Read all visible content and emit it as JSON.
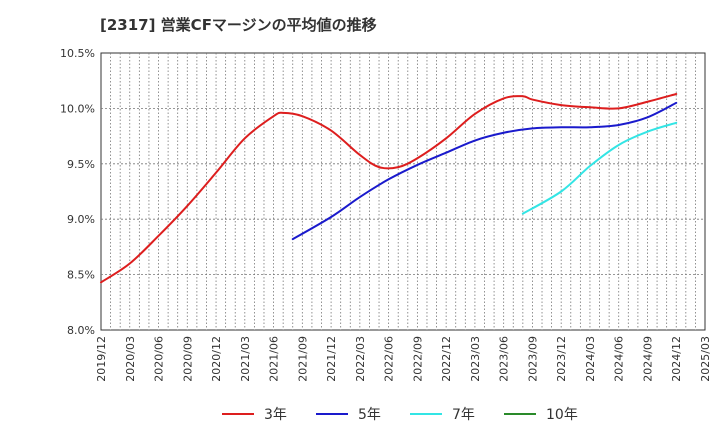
{
  "chart_data": {
    "type": "line",
    "title": "[2317]  営業CFマージンの平均値の推移",
    "xlabel": "",
    "ylabel": "",
    "ylim": [
      8.0,
      10.5
    ],
    "yticks": [
      "8.0%",
      "8.5%",
      "9.0%",
      "9.5%",
      "10.0%",
      "10.5%"
    ],
    "xlim": [
      "2019/12",
      "2025/03"
    ],
    "xticks": [
      "2019/12",
      "2020/03",
      "2020/06",
      "2020/09",
      "2020/12",
      "2021/03",
      "2021/06",
      "2021/09",
      "2021/12",
      "2022/03",
      "2022/06",
      "2022/09",
      "2022/12",
      "2023/03",
      "2023/06",
      "2023/09",
      "2023/12",
      "2024/03",
      "2024/06",
      "2024/09",
      "2024/12",
      "2025/03"
    ],
    "grid": true,
    "legend_position": "bottom",
    "series": [
      {
        "name": "3年",
        "color": "#dd1e1e",
        "points": [
          [
            "2019/12",
            8.43
          ],
          [
            "2020/03",
            8.6
          ],
          [
            "2020/06",
            8.85
          ],
          [
            "2020/09",
            9.12
          ],
          [
            "2020/12",
            9.42
          ],
          [
            "2021/03",
            9.73
          ],
          [
            "2021/06",
            9.93
          ],
          [
            "2021/07",
            9.96
          ],
          [
            "2021/09",
            9.93
          ],
          [
            "2021/12",
            9.8
          ],
          [
            "2022/03",
            9.58
          ],
          [
            "2022/05",
            9.47
          ],
          [
            "2022/07",
            9.47
          ],
          [
            "2022/09",
            9.55
          ],
          [
            "2022/12",
            9.73
          ],
          [
            "2023/03",
            9.95
          ],
          [
            "2023/06",
            10.09
          ],
          [
            "2023/08",
            10.11
          ],
          [
            "2023/09",
            10.08
          ],
          [
            "2023/12",
            10.03
          ],
          [
            "2024/03",
            10.01
          ],
          [
            "2024/06",
            10.0
          ],
          [
            "2024/09",
            10.06
          ],
          [
            "2024/12",
            10.13
          ]
        ]
      },
      {
        "name": "5年",
        "color": "#1a1acc",
        "points": [
          [
            "2021/08",
            8.82
          ],
          [
            "2021/12",
            9.02
          ],
          [
            "2022/03",
            9.2
          ],
          [
            "2022/06",
            9.36
          ],
          [
            "2022/09",
            9.49
          ],
          [
            "2022/12",
            9.6
          ],
          [
            "2023/03",
            9.71
          ],
          [
            "2023/06",
            9.78
          ],
          [
            "2023/09",
            9.82
          ],
          [
            "2023/12",
            9.83
          ],
          [
            "2024/03",
            9.83
          ],
          [
            "2024/06",
            9.85
          ],
          [
            "2024/09",
            9.92
          ],
          [
            "2024/12",
            10.05
          ]
        ]
      },
      {
        "name": "7年",
        "color": "#33e5e5",
        "points": [
          [
            "2023/08",
            9.05
          ],
          [
            "2023/12",
            9.25
          ],
          [
            "2024/03",
            9.48
          ],
          [
            "2024/06",
            9.67
          ],
          [
            "2024/09",
            9.79
          ],
          [
            "2024/12",
            9.87
          ]
        ]
      },
      {
        "name": "10年",
        "color": "#2a8a2a",
        "points": []
      }
    ]
  }
}
